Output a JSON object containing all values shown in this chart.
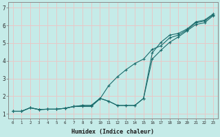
{
  "xlabel": "Humidex (Indice chaleur)",
  "ylabel": "",
  "background_color": "#c5ebe8",
  "grid_color": "#e8c8c8",
  "line_color": "#1a6b6b",
  "xlim": [
    -0.5,
    23.5
  ],
  "ylim": [
    0.75,
    7.3
  ],
  "x_ticks": [
    0,
    1,
    2,
    3,
    4,
    5,
    6,
    7,
    8,
    9,
    10,
    11,
    12,
    13,
    14,
    15,
    16,
    17,
    18,
    19,
    20,
    21,
    22,
    23
  ],
  "y_ticks": [
    1,
    2,
    3,
    4,
    5,
    6,
    7
  ],
  "line1_x": [
    0,
    1,
    2,
    3,
    4,
    5,
    6,
    7,
    8,
    9,
    10,
    11,
    12,
    13,
    14,
    15,
    16,
    17,
    18,
    19,
    20,
    21,
    22,
    23
  ],
  "line1_y": [
    1.15,
    1.15,
    1.35,
    1.25,
    1.27,
    1.27,
    1.32,
    1.42,
    1.42,
    1.42,
    1.85,
    2.6,
    3.1,
    3.5,
    3.85,
    4.1,
    4.65,
    4.85,
    5.3,
    5.45,
    5.75,
    6.15,
    6.25,
    6.6
  ],
  "line2_x": [
    0,
    1,
    2,
    3,
    4,
    5,
    6,
    7,
    8,
    9,
    10,
    11,
    12,
    13,
    14,
    15,
    16,
    17,
    18,
    19,
    20,
    21,
    22,
    23
  ],
  "line2_y": [
    1.15,
    1.15,
    1.35,
    1.25,
    1.27,
    1.27,
    1.32,
    1.42,
    1.48,
    1.48,
    1.88,
    1.72,
    1.48,
    1.48,
    1.48,
    1.88,
    4.45,
    5.05,
    5.45,
    5.55,
    5.8,
    6.2,
    6.3,
    6.65
  ],
  "line3_x": [
    0,
    1,
    2,
    3,
    4,
    5,
    6,
    7,
    8,
    9,
    10,
    11,
    12,
    13,
    14,
    15,
    16,
    17,
    18,
    19,
    20,
    21,
    22,
    23
  ],
  "line3_y": [
    1.15,
    1.15,
    1.35,
    1.25,
    1.27,
    1.27,
    1.32,
    1.42,
    1.48,
    1.48,
    1.88,
    1.72,
    1.48,
    1.48,
    1.48,
    1.88,
    4.1,
    4.6,
    5.05,
    5.35,
    5.7,
    6.05,
    6.15,
    6.55
  ]
}
